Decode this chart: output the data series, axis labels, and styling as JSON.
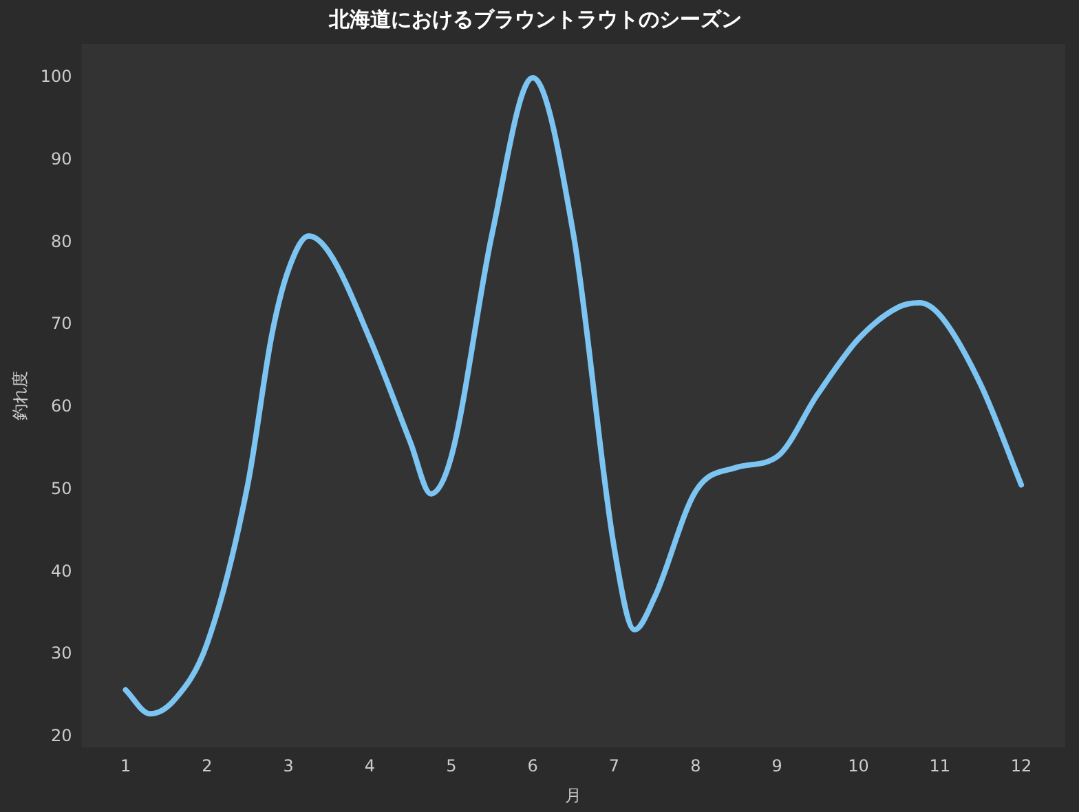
{
  "chart_data": {
    "type": "line",
    "title": "北海道におけるブラウントラウトのシーズン",
    "xlabel": "月",
    "ylabel": "釣れ度",
    "series": [
      {
        "color": "#7cc4f2",
        "x": [
          1,
          1.3,
          1.6,
          2,
          2.5,
          2.8,
          3,
          3.25,
          3.5,
          4,
          4.5,
          4.75,
          5,
          5.5,
          6,
          6.5,
          7,
          7.25,
          7.5,
          8,
          8.5,
          9,
          9.5,
          10,
          10.5,
          10.75,
          11,
          11.5,
          12
        ],
        "values": [
          25.7,
          22.8,
          24.5,
          31.3,
          50.6,
          69,
          76.7,
          80.8,
          78.8,
          68.3,
          55.7,
          49.5,
          54,
          81,
          100,
          81,
          43,
          33,
          37,
          49.8,
          52.7,
          54,
          61.6,
          68.3,
          72.2,
          72.7,
          71.2,
          62.8,
          50.6
        ]
      }
    ],
    "xlim": [
      0.46,
      12.54
    ],
    "xticks": [
      1,
      2,
      3,
      4,
      5,
      6,
      7,
      8,
      9,
      10,
      11,
      12
    ],
    "ylim": [
      18.7,
      104.1
    ],
    "yticks": [
      20,
      30,
      40,
      50,
      60,
      70,
      80,
      90,
      100
    ],
    "grid": false,
    "legend": false,
    "marker": "none",
    "line_style": "solid"
  }
}
